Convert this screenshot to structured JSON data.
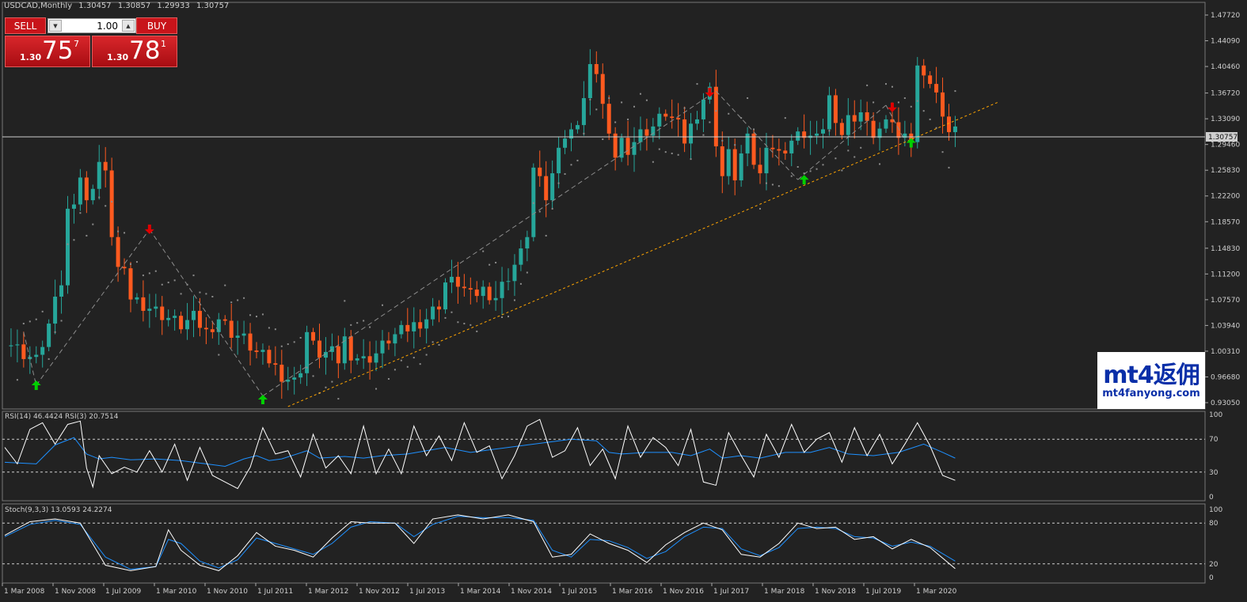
{
  "header": {
    "symbol_tf": "USDCAD,Monthly",
    "ohlc": [
      "1.30457",
      "1.30857",
      "1.29933",
      "1.30757"
    ]
  },
  "trade_panel": {
    "sell_label": "SELL",
    "buy_label": "BUY",
    "lot_value": "1.00",
    "sell_price_prefix": "1.30",
    "sell_price_main": "75",
    "sell_price_sup": "7",
    "buy_price_prefix": "1.30",
    "buy_price_main": "78",
    "buy_price_sup": "1"
  },
  "watermark": {
    "logo": "mt4返佣",
    "url": "mt4fanyong.com"
  },
  "indicators": {
    "rsi_label": "RSI(14) 46.4424  RSI(3) 20.7514",
    "stoch_label": "Stoch(9,3,3) 13.0593 24.2274"
  },
  "colors": {
    "background": "#222222",
    "bull": "#26a69a",
    "bear": "#ff5a1f",
    "psar": "#8c8c8c",
    "trendline": "#ffa500",
    "rsi_fast": "#ffffff",
    "rsi_slow": "#1e90ff",
    "up_arrow": "#00d000",
    "down_arrow": "#e00000"
  },
  "chart_data": {
    "type": "candlestick",
    "current_price": "1.30757",
    "y_ticks": [
      "1.47720",
      "1.44090",
      "1.40460",
      "1.36720",
      "1.33090",
      "1.29460",
      "1.25830",
      "1.22200",
      "1.18570",
      "1.14830",
      "1.11200",
      "1.07570",
      "1.03940",
      "1.00310",
      "0.96680",
      "0.93050"
    ],
    "ylim": [
      0.9305,
      1.4772
    ],
    "x_ticks": [
      "1 Mar 2008",
      "1 Nov 2008",
      "1 Jul 2009",
      "1 Mar 2010",
      "1 Nov 2010",
      "1 Jul 2011",
      "1 Mar 2012",
      "1 Nov 2012",
      "1 Jul 2013",
      "1 Mar 2014",
      "1 Nov 2014",
      "1 Jul 2015",
      "1 Mar 2016",
      "1 Nov 2016",
      "1 Jul 2017",
      "1 Mar 2018",
      "1 Nov 2018",
      "1 Jul 2019",
      "1 Mar 2020"
    ],
    "rsi_levels": [
      "100",
      "70",
      "30",
      "0"
    ],
    "stoch_levels": [
      "100",
      "80",
      "20",
      "0"
    ],
    "close_points": [
      [
        0,
        1.02
      ],
      [
        3,
        1.0
      ],
      [
        5,
        0.99
      ],
      [
        7,
        1.04
      ],
      [
        9,
        1.1
      ],
      [
        10,
        1.2
      ],
      [
        11,
        1.22
      ],
      [
        12,
        1.25
      ],
      [
        13,
        1.21
      ],
      [
        14,
        1.24
      ],
      [
        15,
        1.27
      ],
      [
        16,
        1.25
      ],
      [
        17,
        1.17
      ],
      [
        18,
        1.12
      ],
      [
        19,
        1.11
      ],
      [
        20,
        1.08
      ],
      [
        22,
        1.07
      ],
      [
        24,
        1.06
      ],
      [
        26,
        1.05
      ],
      [
        28,
        1.04
      ],
      [
        30,
        1.05
      ],
      [
        32,
        1.03
      ],
      [
        34,
        1.05
      ],
      [
        36,
        1.03
      ],
      [
        38,
        1.02
      ],
      [
        40,
        1.0
      ],
      [
        42,
        0.99
      ],
      [
        44,
        0.97
      ],
      [
        46,
        0.96
      ],
      [
        47,
        0.98
      ],
      [
        48,
        1.03
      ],
      [
        49,
        1.01
      ],
      [
        50,
        1.0
      ],
      [
        52,
        1.0
      ],
      [
        53,
        0.99
      ],
      [
        54,
        1.02
      ],
      [
        55,
        1.0
      ],
      [
        57,
        0.99
      ],
      [
        59,
        1.0
      ],
      [
        61,
        1.02
      ],
      [
        63,
        1.03
      ],
      [
        65,
        1.04
      ],
      [
        67,
        1.05
      ],
      [
        69,
        1.07
      ],
      [
        70,
        1.1
      ],
      [
        72,
        1.1
      ],
      [
        74,
        1.08
      ],
      [
        76,
        1.09
      ],
      [
        78,
        1.08
      ],
      [
        80,
        1.11
      ],
      [
        82,
        1.14
      ],
      [
        83,
        1.17
      ],
      [
        84,
        1.26
      ],
      [
        85,
        1.24
      ],
      [
        86,
        1.22
      ],
      [
        87,
        1.25
      ],
      [
        88,
        1.3
      ],
      [
        90,
        1.31
      ],
      [
        91,
        1.33
      ],
      [
        92,
        1.36
      ],
      [
        93,
        1.4
      ],
      [
        94,
        1.4
      ],
      [
        95,
        1.35
      ],
      [
        96,
        1.3
      ],
      [
        97,
        1.28
      ],
      [
        98,
        1.3
      ],
      [
        99,
        1.29
      ],
      [
        101,
        1.31
      ],
      [
        103,
        1.32
      ],
      [
        105,
        1.34
      ],
      [
        106,
        1.33
      ],
      [
        107,
        1.32
      ],
      [
        108,
        1.3
      ],
      [
        110,
        1.34
      ],
      [
        111,
        1.36
      ],
      [
        112,
        1.37
      ],
      [
        113,
        1.3
      ],
      [
        114,
        1.25
      ],
      [
        115,
        1.28
      ],
      [
        116,
        1.25
      ],
      [
        117,
        1.28
      ],
      [
        118,
        1.3
      ],
      [
        119,
        1.27
      ],
      [
        120,
        1.25
      ],
      [
        121,
        1.3
      ],
      [
        123,
        1.28
      ],
      [
        125,
        1.3
      ],
      [
        127,
        1.31
      ],
      [
        129,
        1.3
      ],
      [
        130,
        1.32
      ],
      [
        131,
        1.36
      ],
      [
        133,
        1.31
      ],
      [
        134,
        1.33
      ],
      [
        136,
        1.34
      ],
      [
        137,
        1.32
      ],
      [
        138,
        1.31
      ],
      [
        140,
        1.32
      ],
      [
        141,
        1.33
      ],
      [
        142,
        1.3
      ],
      [
        143,
        1.32
      ],
      [
        144,
        1.3
      ],
      [
        145,
        1.4
      ],
      [
        146,
        1.4
      ],
      [
        147,
        1.38
      ],
      [
        148,
        1.36
      ],
      [
        149,
        1.34
      ],
      [
        150,
        1.31
      ],
      [
        151,
        1.31
      ]
    ],
    "rsi14": [
      [
        0,
        42
      ],
      [
        5,
        40
      ],
      [
        8,
        63
      ],
      [
        11,
        72
      ],
      [
        13,
        52
      ],
      [
        15,
        46
      ],
      [
        17,
        48
      ],
      [
        20,
        45
      ],
      [
        24,
        46
      ],
      [
        28,
        44
      ],
      [
        32,
        40
      ],
      [
        35,
        37
      ],
      [
        38,
        46
      ],
      [
        40,
        50
      ],
      [
        42,
        44
      ],
      [
        44,
        46
      ],
      [
        48,
        56
      ],
      [
        50,
        47
      ],
      [
        52,
        48
      ],
      [
        54,
        49
      ],
      [
        57,
        47
      ],
      [
        60,
        50
      ],
      [
        64,
        52
      ],
      [
        70,
        60
      ],
      [
        74,
        54
      ],
      [
        78,
        58
      ],
      [
        82,
        62
      ],
      [
        86,
        66
      ],
      [
        90,
        70
      ],
      [
        94,
        68
      ],
      [
        96,
        54
      ],
      [
        98,
        52
      ],
      [
        102,
        54
      ],
      [
        106,
        54
      ],
      [
        109,
        50
      ],
      [
        112,
        58
      ],
      [
        114,
        47
      ],
      [
        117,
        50
      ],
      [
        120,
        47
      ],
      [
        124,
        54
      ],
      [
        128,
        54
      ],
      [
        131,
        60
      ],
      [
        134,
        52
      ],
      [
        138,
        50
      ],
      [
        142,
        54
      ],
      [
        146,
        64
      ],
      [
        149,
        54
      ],
      [
        151,
        47
      ]
    ],
    "rsi3": [
      [
        0,
        60
      ],
      [
        2,
        40
      ],
      [
        4,
        82
      ],
      [
        6,
        90
      ],
      [
        8,
        64
      ],
      [
        10,
        88
      ],
      [
        12,
        92
      ],
      [
        13,
        35
      ],
      [
        14,
        12
      ],
      [
        15,
        50
      ],
      [
        17,
        28
      ],
      [
        19,
        36
      ],
      [
        21,
        30
      ],
      [
        23,
        56
      ],
      [
        25,
        30
      ],
      [
        27,
        64
      ],
      [
        29,
        20
      ],
      [
        31,
        60
      ],
      [
        33,
        26
      ],
      [
        35,
        18
      ],
      [
        37,
        10
      ],
      [
        39,
        36
      ],
      [
        41,
        84
      ],
      [
        43,
        52
      ],
      [
        45,
        56
      ],
      [
        47,
        24
      ],
      [
        49,
        76
      ],
      [
        51,
        35
      ],
      [
        53,
        50
      ],
      [
        55,
        28
      ],
      [
        57,
        86
      ],
      [
        59,
        28
      ],
      [
        61,
        58
      ],
      [
        63,
        28
      ],
      [
        65,
        86
      ],
      [
        67,
        50
      ],
      [
        69,
        74
      ],
      [
        71,
        44
      ],
      [
        73,
        90
      ],
      [
        75,
        54
      ],
      [
        77,
        62
      ],
      [
        79,
        22
      ],
      [
        81,
        50
      ],
      [
        83,
        86
      ],
      [
        85,
        94
      ],
      [
        87,
        48
      ],
      [
        89,
        56
      ],
      [
        91,
        84
      ],
      [
        93,
        38
      ],
      [
        95,
        58
      ],
      [
        97,
        22
      ],
      [
        99,
        86
      ],
      [
        101,
        48
      ],
      [
        103,
        72
      ],
      [
        105,
        60
      ],
      [
        107,
        38
      ],
      [
        109,
        82
      ],
      [
        111,
        18
      ],
      [
        113,
        14
      ],
      [
        115,
        78
      ],
      [
        117,
        50
      ],
      [
        119,
        24
      ],
      [
        121,
        76
      ],
      [
        123,
        48
      ],
      [
        125,
        88
      ],
      [
        127,
        54
      ],
      [
        129,
        70
      ],
      [
        131,
        78
      ],
      [
        133,
        42
      ],
      [
        135,
        84
      ],
      [
        137,
        50
      ],
      [
        139,
        76
      ],
      [
        141,
        40
      ],
      [
        143,
        64
      ],
      [
        145,
        90
      ],
      [
        147,
        62
      ],
      [
        149,
        26
      ],
      [
        151,
        20
      ]
    ],
    "stoch_main": [
      [
        0,
        62
      ],
      [
        4,
        82
      ],
      [
        8,
        86
      ],
      [
        12,
        80
      ],
      [
        16,
        18
      ],
      [
        20,
        10
      ],
      [
        24,
        16
      ],
      [
        26,
        70
      ],
      [
        28,
        40
      ],
      [
        31,
        18
      ],
      [
        34,
        10
      ],
      [
        37,
        32
      ],
      [
        40,
        66
      ],
      [
        43,
        46
      ],
      [
        46,
        40
      ],
      [
        49,
        30
      ],
      [
        52,
        58
      ],
      [
        55,
        82
      ],
      [
        58,
        80
      ],
      [
        62,
        80
      ],
      [
        65,
        50
      ],
      [
        68,
        86
      ],
      [
        72,
        92
      ],
      [
        76,
        86
      ],
      [
        80,
        92
      ],
      [
        84,
        82
      ],
      [
        87,
        30
      ],
      [
        90,
        34
      ],
      [
        93,
        64
      ],
      [
        96,
        50
      ],
      [
        99,
        40
      ],
      [
        102,
        22
      ],
      [
        105,
        48
      ],
      [
        108,
        66
      ],
      [
        111,
        80
      ],
      [
        114,
        70
      ],
      [
        117,
        34
      ],
      [
        120,
        30
      ],
      [
        123,
        50
      ],
      [
        126,
        80
      ],
      [
        129,
        72
      ],
      [
        132,
        74
      ],
      [
        135,
        56
      ],
      [
        138,
        60
      ],
      [
        141,
        42
      ],
      [
        144,
        56
      ],
      [
        147,
        44
      ],
      [
        151,
        13
      ]
    ],
    "stoch_signal": [
      [
        0,
        60
      ],
      [
        4,
        78
      ],
      [
        8,
        84
      ],
      [
        12,
        78
      ],
      [
        16,
        30
      ],
      [
        20,
        12
      ],
      [
        24,
        16
      ],
      [
        26,
        56
      ],
      [
        28,
        50
      ],
      [
        31,
        24
      ],
      [
        34,
        14
      ],
      [
        37,
        26
      ],
      [
        40,
        58
      ],
      [
        43,
        50
      ],
      [
        46,
        42
      ],
      [
        49,
        34
      ],
      [
        52,
        50
      ],
      [
        55,
        74
      ],
      [
        58,
        82
      ],
      [
        62,
        80
      ],
      [
        65,
        60
      ],
      [
        68,
        78
      ],
      [
        72,
        90
      ],
      [
        76,
        88
      ],
      [
        80,
        88
      ],
      [
        84,
        84
      ],
      [
        87,
        40
      ],
      [
        90,
        30
      ],
      [
        93,
        56
      ],
      [
        96,
        54
      ],
      [
        99,
        44
      ],
      [
        102,
        28
      ],
      [
        105,
        38
      ],
      [
        108,
        60
      ],
      [
        111,
        74
      ],
      [
        114,
        72
      ],
      [
        117,
        42
      ],
      [
        120,
        32
      ],
      [
        123,
        44
      ],
      [
        126,
        72
      ],
      [
        129,
        74
      ],
      [
        132,
        72
      ],
      [
        135,
        60
      ],
      [
        138,
        58
      ],
      [
        141,
        46
      ],
      [
        144,
        52
      ],
      [
        147,
        46
      ],
      [
        151,
        24
      ]
    ]
  }
}
